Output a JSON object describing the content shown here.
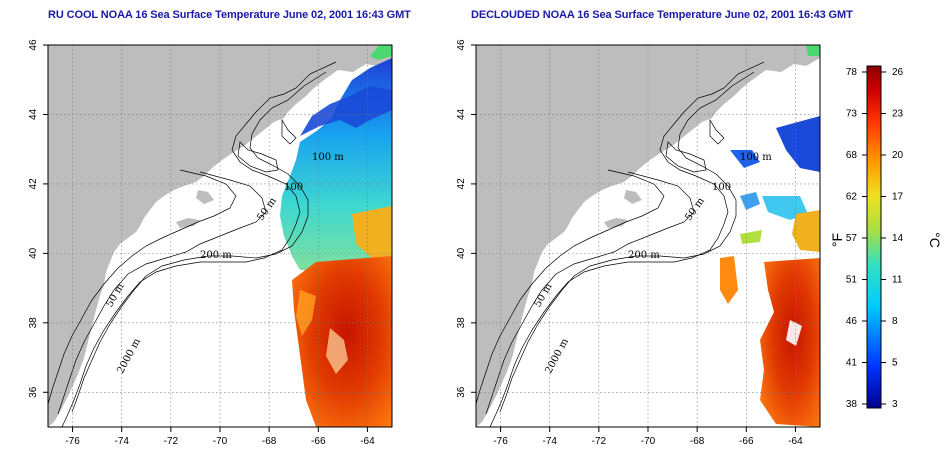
{
  "panels": [
    {
      "id": "left",
      "title": "RU COOL NOAA 16 Sea Surface Temperature June 02, 2001 16:43 GMT"
    },
    {
      "id": "right",
      "title": "DECLOUDED NOAA 16 Sea Surface Temperature June 02, 2001 16:43 GMT"
    }
  ],
  "axes": {
    "lon_ticks": [
      "-76",
      "-74",
      "-72",
      "-70",
      "-68",
      "-66",
      "-64"
    ],
    "lat_ticks": [
      "46",
      "44",
      "42",
      "40",
      "38",
      "36"
    ],
    "lon_range": [
      -77,
      -63
    ],
    "lat_range": [
      35,
      46
    ],
    "grid": "dotted"
  },
  "isobaths": {
    "left": [
      "100 m",
      "100",
      "50 m",
      "200 m",
      "50 m",
      "2000 m"
    ],
    "right": [
      "100 m",
      "100",
      "50 m",
      "200 m",
      "50 m",
      "2000 m"
    ]
  },
  "colorbar": {
    "fahrenheit_unit": "°F",
    "celsius_unit": "°C",
    "fahrenheit_ticks": [
      "78",
      "73",
      "68",
      "62",
      "57",
      "51",
      "46",
      "41",
      "38"
    ],
    "celsius_ticks": [
      "26",
      "23",
      "20",
      "17",
      "14",
      "11",
      "8",
      "5",
      "3"
    ],
    "celsius_range": [
      3,
      26
    ]
  },
  "colors": {
    "land": "#bdbdbd",
    "ocean": "#ffffff",
    "title": "#1a1aa6",
    "cold": "#1a1aa6",
    "warm": "#8c0000"
  }
}
